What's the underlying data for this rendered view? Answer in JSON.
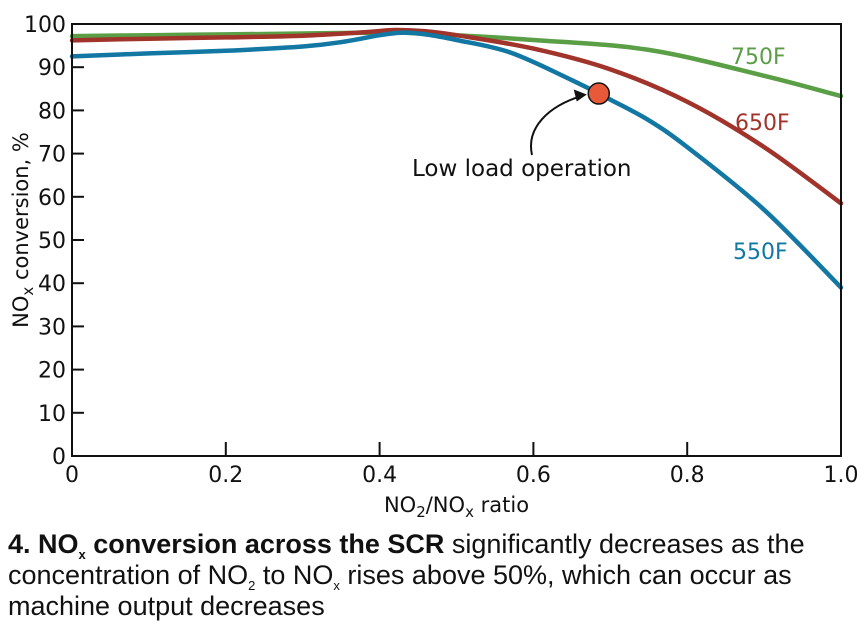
{
  "chart_data": {
    "type": "line",
    "xlabel": {
      "pre": "NO",
      "sub1": "2",
      "mid": "/NO",
      "sub2": "x",
      "post": " ratio"
    },
    "ylabel": {
      "pre": "NO",
      "sub": "x",
      "post": " conversion, %"
    },
    "xlim": [
      0,
      1.0
    ],
    "ylim": [
      0,
      100
    ],
    "xticks": [
      0,
      0.2,
      0.4,
      0.6,
      0.8,
      1.0
    ],
    "xtick_labels": [
      "0",
      "0.2",
      "0.4",
      "0.6",
      "0.8",
      "1.0"
    ],
    "yticks": [
      0,
      10,
      20,
      30,
      40,
      50,
      60,
      70,
      80,
      90,
      100
    ],
    "ytick_labels": [
      "0",
      "10",
      "20",
      "30",
      "40",
      "50",
      "60",
      "70",
      "80",
      "90",
      "100"
    ],
    "grid": false,
    "series": [
      {
        "name": "750F",
        "color": "#5a9e46",
        "x": [
          0,
          0.1,
          0.2,
          0.3,
          0.4,
          0.43,
          0.5,
          0.6,
          0.75,
          0.9,
          1.0
        ],
        "y": [
          97.2,
          97.4,
          97.6,
          97.8,
          98.0,
          98.0,
          97.4,
          96.3,
          94.0,
          88.0,
          83.3
        ]
      },
      {
        "name": "650F",
        "color": "#a0332a",
        "x": [
          0,
          0.1,
          0.2,
          0.3,
          0.38,
          0.42,
          0.46,
          0.5,
          0.6,
          0.7,
          0.8,
          0.9,
          1.0
        ],
        "y": [
          96.2,
          96.6,
          96.9,
          97.3,
          98.1,
          98.6,
          98.3,
          97.4,
          94.3,
          89.5,
          82.0,
          71.5,
          58.5
        ]
      },
      {
        "name": "550F",
        "color": "#1277a3",
        "x": [
          0,
          0.1,
          0.2,
          0.3,
          0.35,
          0.4,
          0.43,
          0.46,
          0.5,
          0.57,
          0.65,
          0.7,
          0.75,
          0.8,
          0.9,
          1.0
        ],
        "y": [
          92.5,
          93.2,
          93.8,
          94.8,
          95.8,
          97.4,
          98.0,
          97.6,
          96.3,
          93.4,
          87.0,
          82.5,
          77.7,
          71.5,
          57.0,
          39.0
        ]
      }
    ],
    "annotation": {
      "text": "Low load operation",
      "x": 0.685,
      "y": 83.9,
      "marker_color": "#e8593a"
    }
  },
  "caption": {
    "bold_pre": "4. NO",
    "bold_sub": "x",
    "bold_post": " conversion across the SCR",
    "text1": " significantly decreases as the concentration of NO",
    "sub2": "2",
    "text2": " to NO",
    "sub3": "x",
    "text3": " rises above 50%, which can occur as machine output decreases"
  }
}
